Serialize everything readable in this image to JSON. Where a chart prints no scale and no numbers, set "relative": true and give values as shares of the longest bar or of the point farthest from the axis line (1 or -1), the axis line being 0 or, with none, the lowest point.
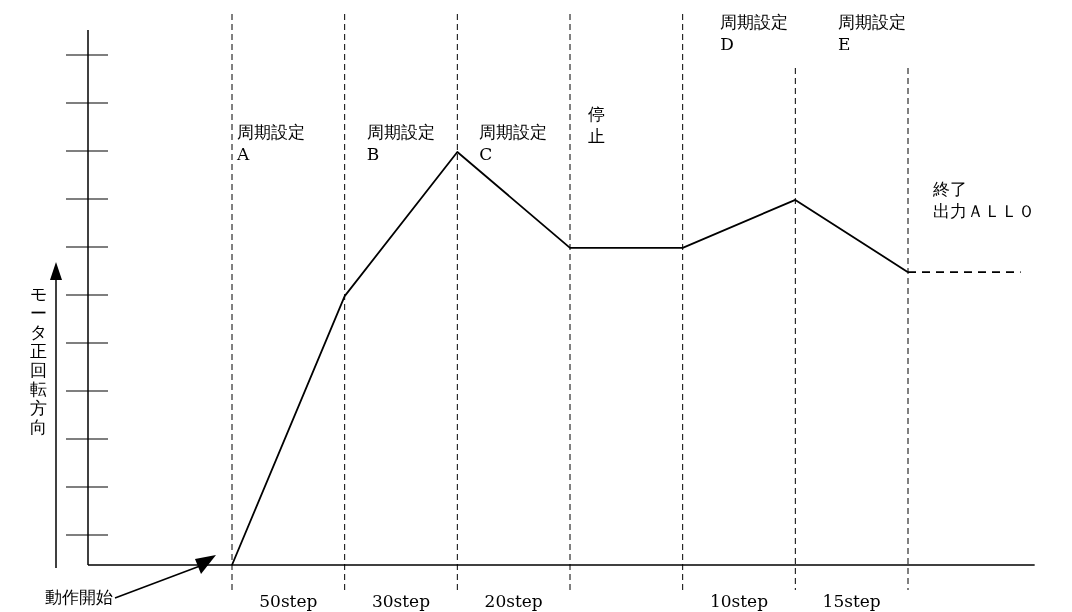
{
  "chart_data": {
    "type": "line",
    "relative": true,
    "ylabel": "モータ正回転方向",
    "categories": [
      null,
      null,
      null,
      null,
      null,
      null,
      null,
      null
    ],
    "grid": "x",
    "marker": "none",
    "series": [
      {
        "color": "#000000",
        "line_style": "solid",
        "values": [
          0,
          0.651,
          1,
          0.768,
          0.768,
          0.884,
          0.709,
          null
        ]
      },
      {
        "color": "#000000",
        "line_style": "dashed",
        "values": [
          null,
          null,
          null,
          null,
          null,
          null,
          0.709,
          0.709
        ]
      }
    ],
    "annotations": [
      "周期設定\nA",
      "周期設定\nB",
      "周期設定\nC",
      "停止",
      "周期設定\nD",
      "周期設定\nE",
      "終了出力ＡＬＬ０",
      "50step",
      "30step",
      "20step",
      "10step",
      "15step",
      "動作開始"
    ]
  }
}
